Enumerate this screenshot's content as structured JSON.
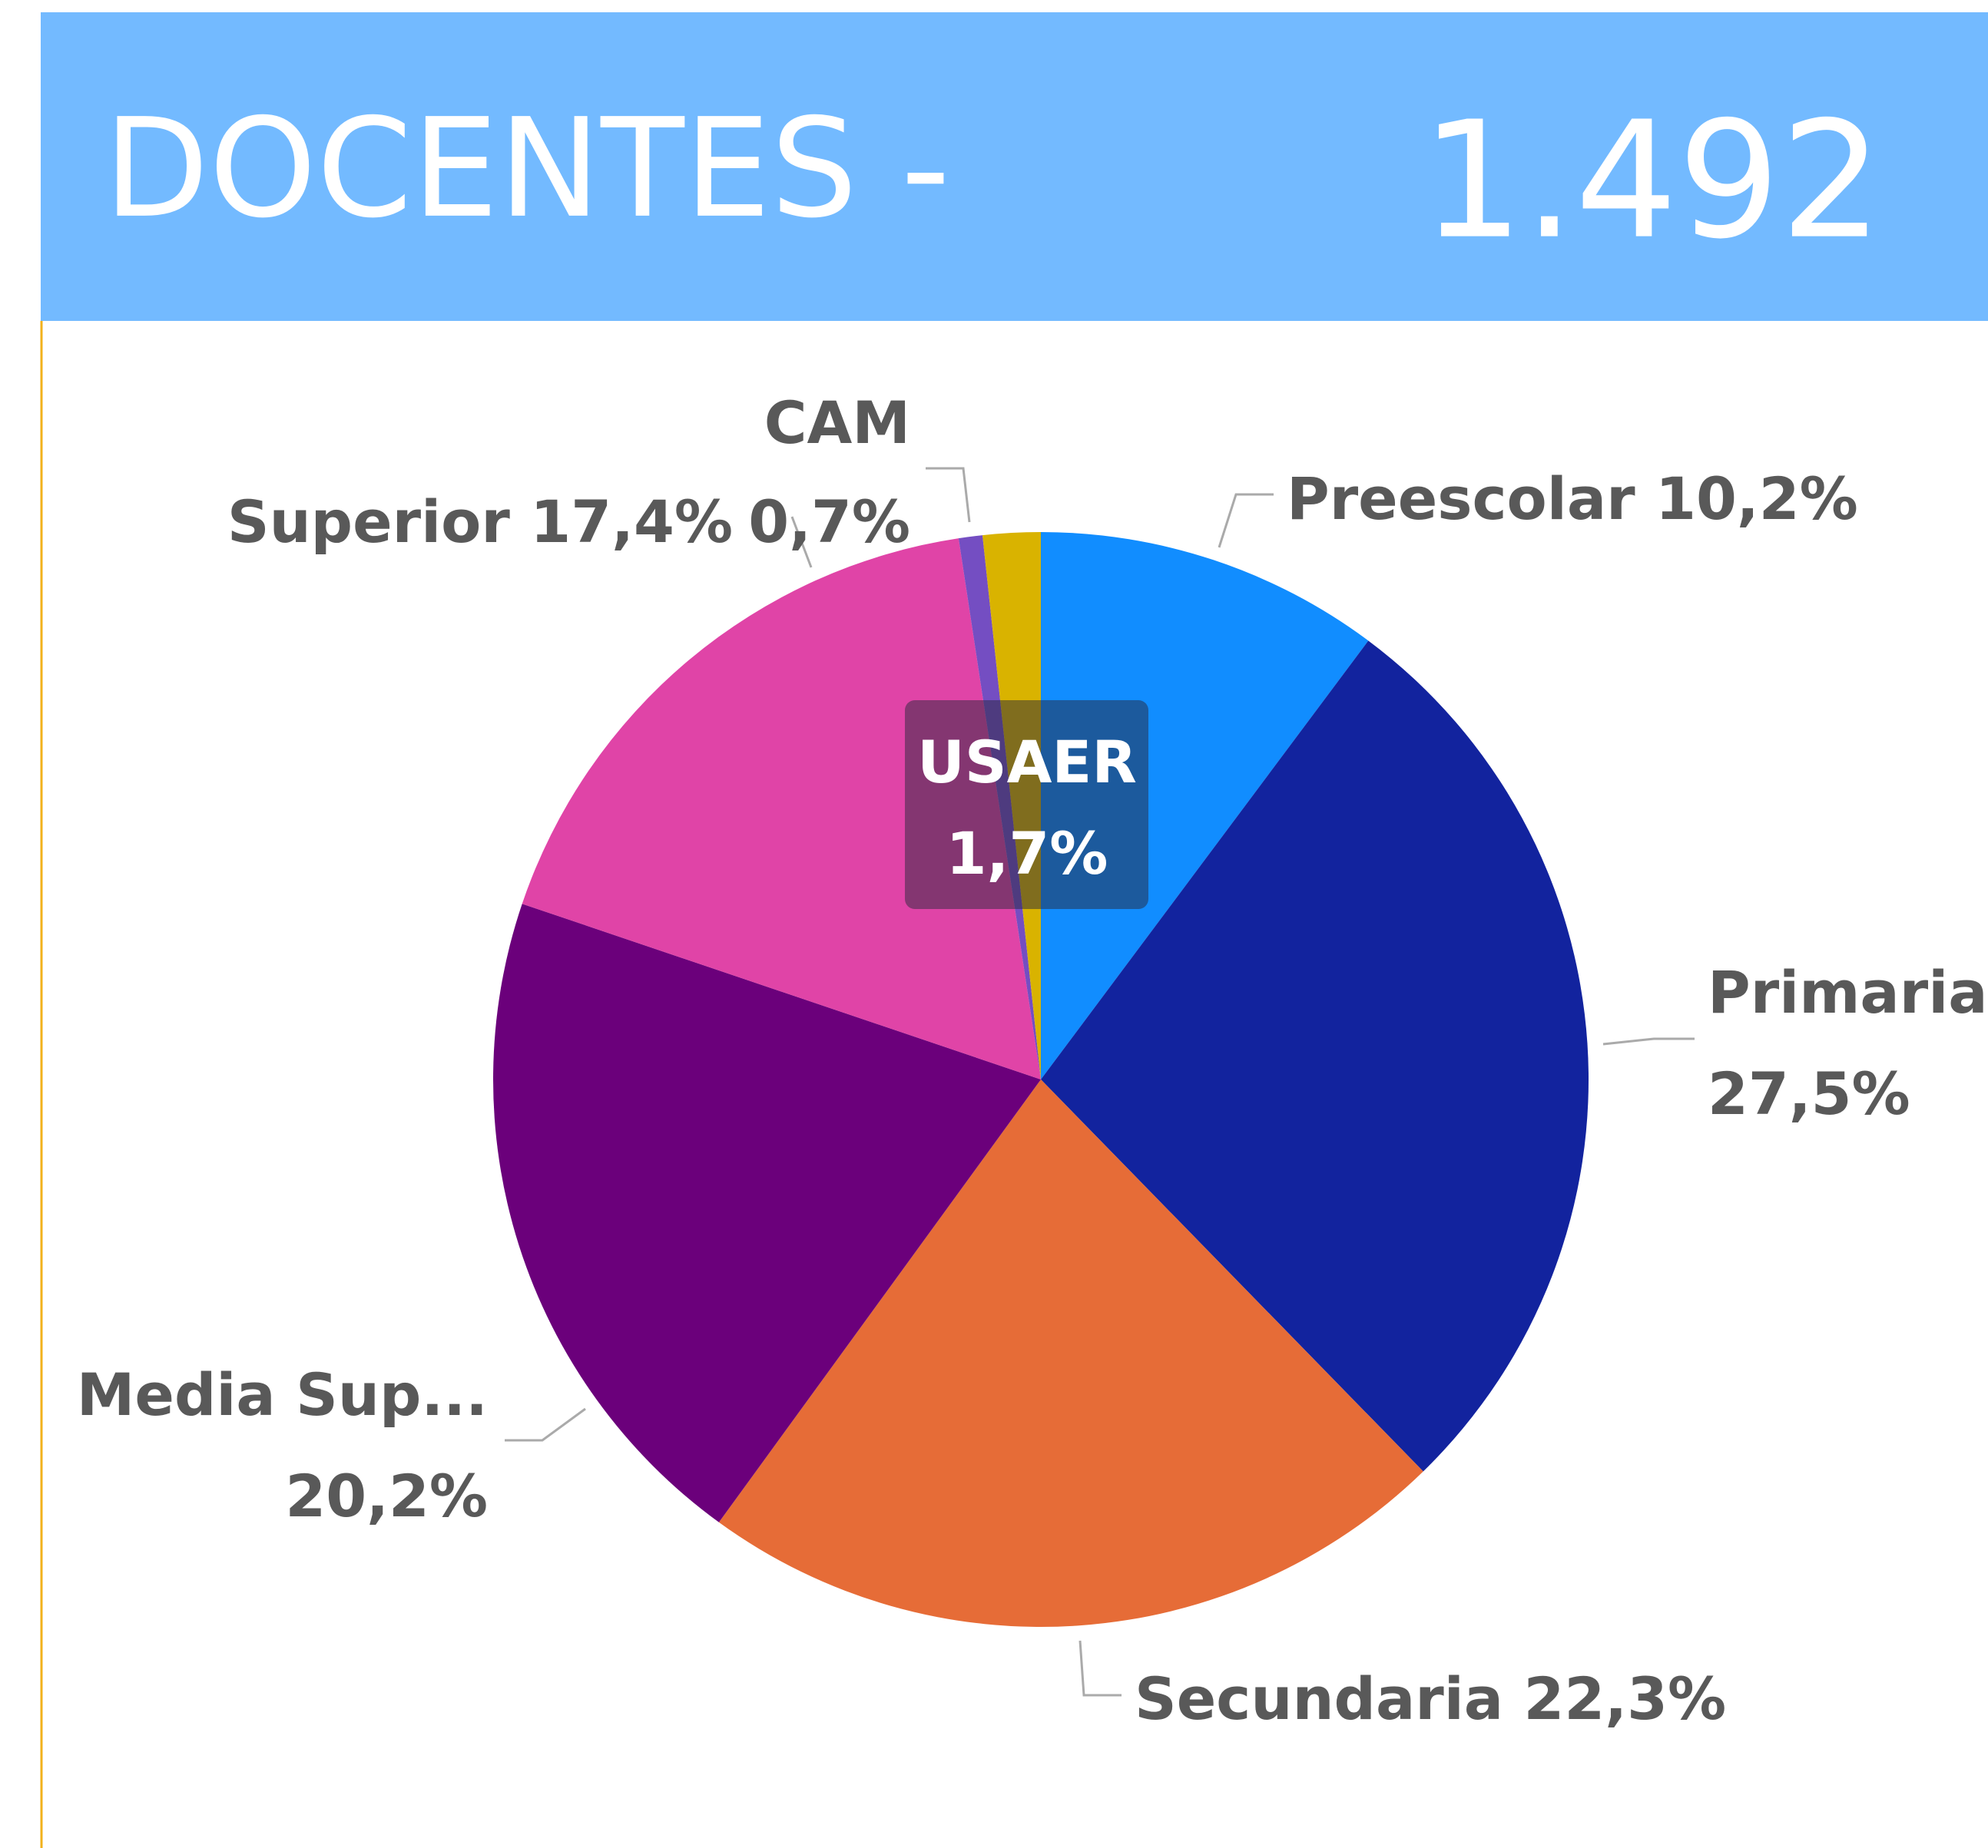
{
  "header": {
    "title": "DOCENTES -",
    "value": "1.492"
  },
  "chart_data": {
    "type": "pie",
    "categories": [
      "Preescolar",
      "Primaria",
      "Secundaria",
      "Media Sup...",
      "Superior",
      "CAM",
      "USAER"
    ],
    "values": [
      10.2,
      27.5,
      22.3,
      20.2,
      17.4,
      0.7,
      1.7
    ],
    "value_labels": [
      "10,2%",
      "27,5%",
      "22,3%",
      "20,2%",
      "17,4%",
      "0,7%",
      "1,7%"
    ],
    "colors": [
      "#118DFF",
      "#12239E",
      "#E66C37",
      "#6B007B",
      "#E044A7",
      "#744EC2",
      "#D9B300"
    ]
  }
}
